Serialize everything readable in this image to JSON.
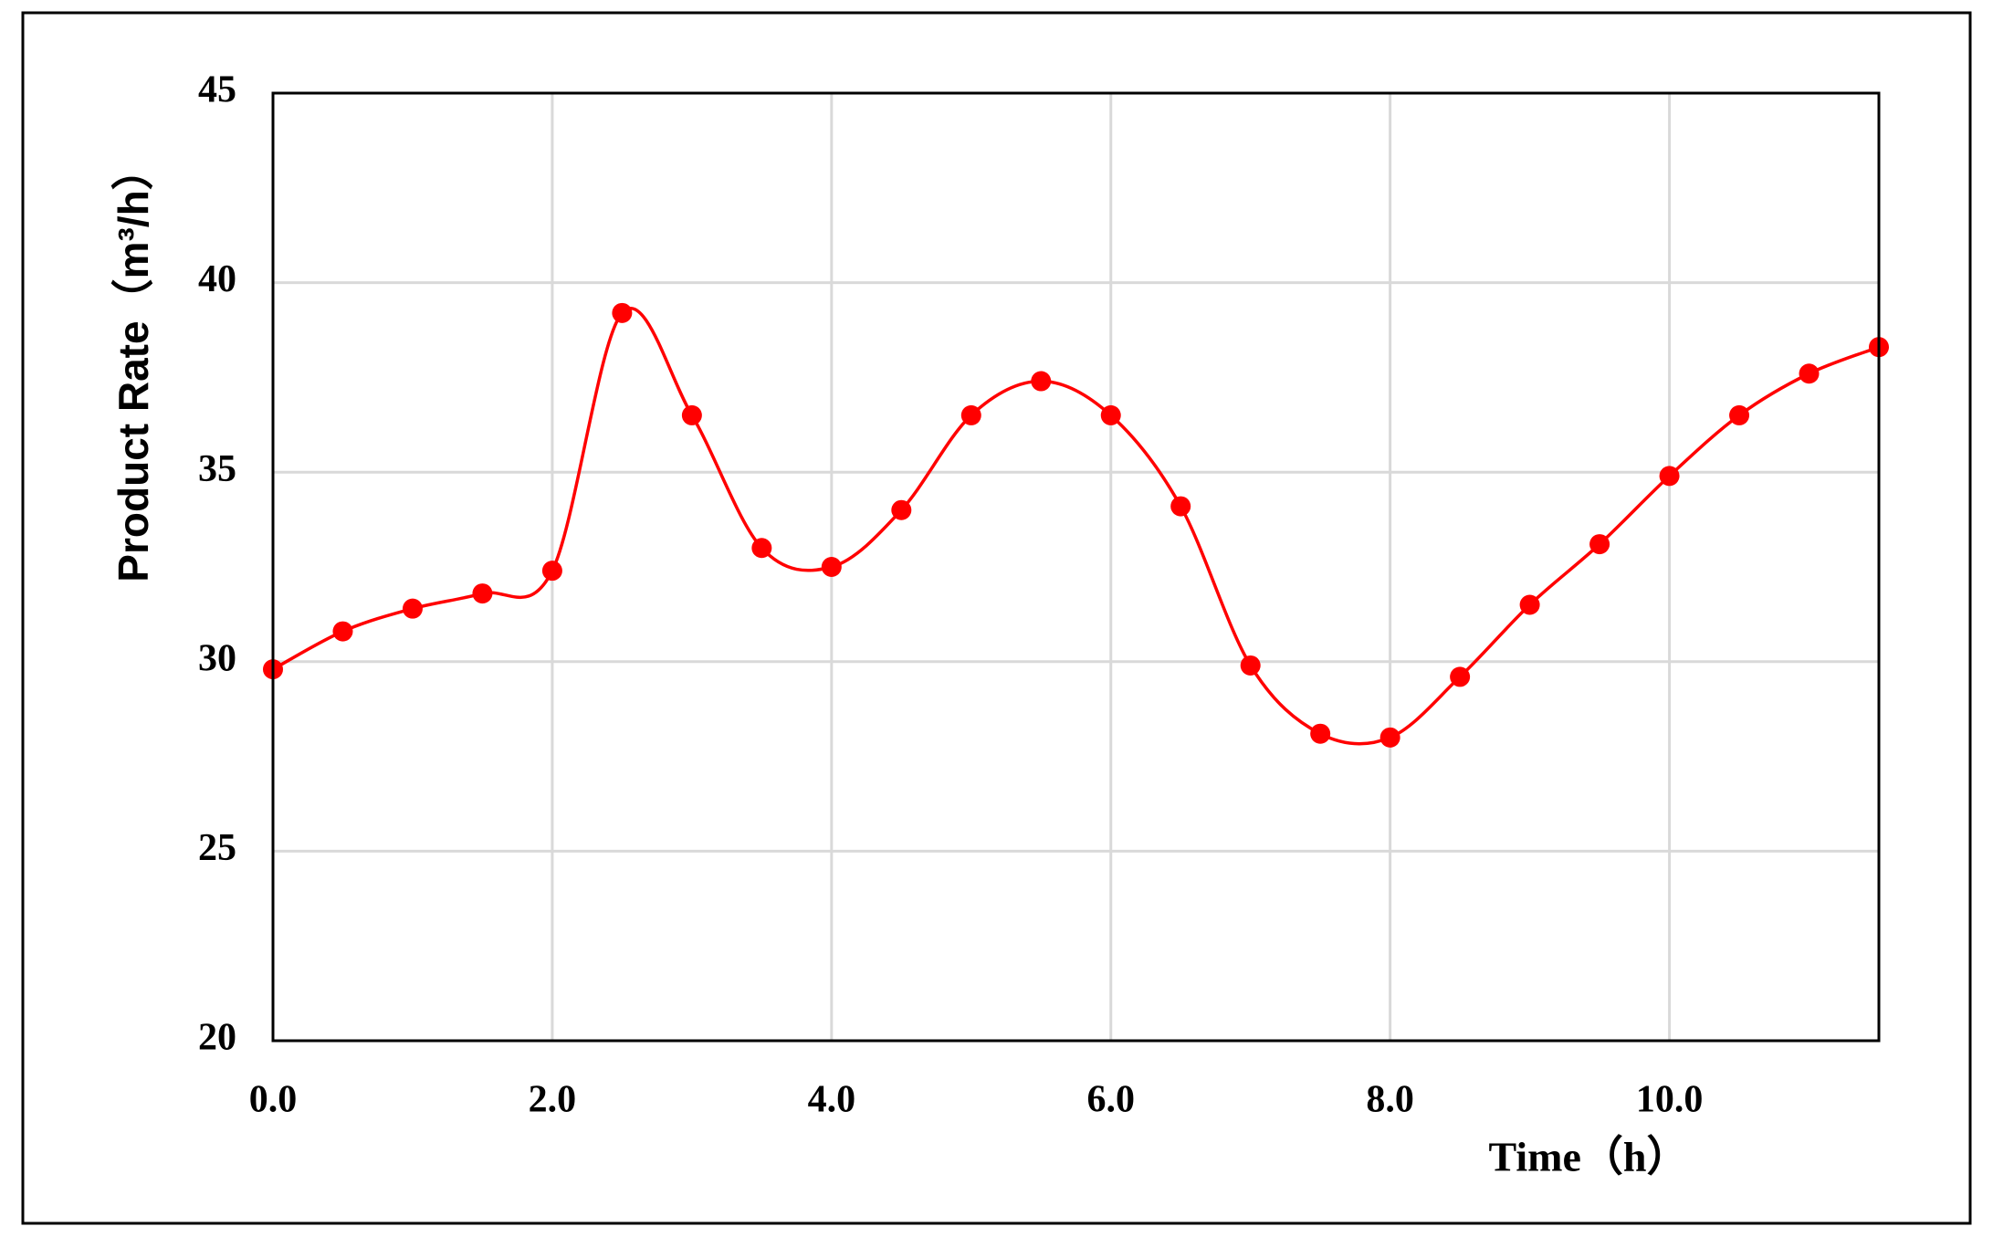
{
  "chart_data": {
    "type": "line",
    "x_label": "Time（h）",
    "y_label": "Product Rate（m³/h）",
    "x": [
      0,
      0.5,
      1.0,
      1.5,
      2.0,
      2.5,
      3.0,
      3.5,
      4.0,
      4.5,
      5.0,
      5.5,
      6.0,
      6.5,
      7.0,
      7.5,
      8.0,
      8.5,
      9.0,
      9.5,
      10.0,
      10.5,
      11.0,
      11.5
    ],
    "series": [
      {
        "name": "Product Rate",
        "color": "#ff0000",
        "values": [
          29.8,
          30.8,
          31.4,
          31.8,
          32.4,
          39.2,
          36.5,
          33.0,
          32.5,
          34.0,
          36.5,
          37.4,
          36.5,
          34.1,
          29.9,
          28.1,
          28.0,
          29.6,
          31.5,
          33.1,
          34.9,
          36.5,
          37.6,
          38.3
        ]
      }
    ],
    "xlim": [
      0,
      11.5
    ],
    "xticks": [
      {
        "value": 0,
        "label": "0.0"
      },
      {
        "value": 2,
        "label": "2.0"
      },
      {
        "value": 4,
        "label": "4.0"
      },
      {
        "value": 6,
        "label": "6.0"
      },
      {
        "value": 8,
        "label": "8.0"
      },
      {
        "value": 10,
        "label": "10.0"
      }
    ],
    "ylim": [
      20,
      45
    ],
    "yticks": [
      20,
      25,
      30,
      35,
      40,
      45
    ],
    "grid": true
  }
}
